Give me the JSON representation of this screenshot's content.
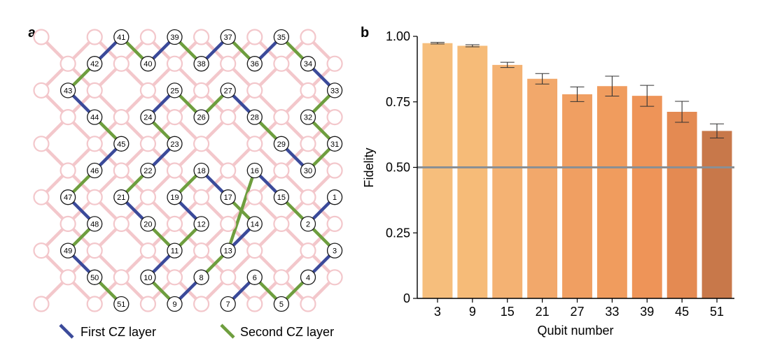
{
  "panel_a": {
    "letter": "a",
    "colors": {
      "first": "#3b4a9a",
      "second": "#6e9e3e",
      "unused": "#f3c7cb"
    },
    "grid": {
      "rows": 11,
      "cols": 11
    },
    "qubits": [
      {
        "label": "41",
        "r": 0,
        "c": 3
      },
      {
        "label": "39",
        "r": 0,
        "c": 5
      },
      {
        "label": "37",
        "r": 0,
        "c": 7
      },
      {
        "label": "35",
        "r": 0,
        "c": 9
      },
      {
        "label": "42",
        "r": 1,
        "c": 2
      },
      {
        "label": "40",
        "r": 1,
        "c": 4
      },
      {
        "label": "38",
        "r": 1,
        "c": 6
      },
      {
        "label": "36",
        "r": 1,
        "c": 8
      },
      {
        "label": "34",
        "r": 1,
        "c": 10
      },
      {
        "label": "43",
        "r": 2,
        "c": 1
      },
      {
        "label": "25",
        "r": 2,
        "c": 5
      },
      {
        "label": "27",
        "r": 2,
        "c": 7
      },
      {
        "label": "33",
        "r": 2,
        "c": 11
      },
      {
        "label": "44",
        "r": 3,
        "c": 2
      },
      {
        "label": "24",
        "r": 3,
        "c": 4
      },
      {
        "label": "26",
        "r": 3,
        "c": 6
      },
      {
        "label": "28",
        "r": 3,
        "c": 8
      },
      {
        "label": "32",
        "r": 3,
        "c": 10
      },
      {
        "label": "45",
        "r": 4,
        "c": 3
      },
      {
        "label": "23",
        "r": 4,
        "c": 5
      },
      {
        "label": "29",
        "r": 4,
        "c": 9
      },
      {
        "label": "31",
        "r": 4,
        "c": 11
      },
      {
        "label": "46",
        "r": 5,
        "c": 2
      },
      {
        "label": "22",
        "r": 5,
        "c": 4
      },
      {
        "label": "18",
        "r": 5,
        "c": 6
      },
      {
        "label": "16",
        "r": 5,
        "c": 8
      },
      {
        "label": "30",
        "r": 5,
        "c": 10
      },
      {
        "label": "47",
        "r": 6,
        "c": 1
      },
      {
        "label": "21",
        "r": 6,
        "c": 3
      },
      {
        "label": "19",
        "r": 6,
        "c": 5
      },
      {
        "label": "17",
        "r": 6,
        "c": 7
      },
      {
        "label": "15",
        "r": 6,
        "c": 9
      },
      {
        "label": "1",
        "r": 6,
        "c": 11
      },
      {
        "label": "48",
        "r": 7,
        "c": 2
      },
      {
        "label": "20",
        "r": 7,
        "c": 4
      },
      {
        "label": "12",
        "r": 7,
        "c": 6
      },
      {
        "label": "14",
        "r": 7,
        "c": 8
      },
      {
        "label": "2",
        "r": 7,
        "c": 10
      },
      {
        "label": "49",
        "r": 8,
        "c": 1
      },
      {
        "label": "11",
        "r": 8,
        "c": 5
      },
      {
        "label": "13",
        "r": 8,
        "c": 7
      },
      {
        "label": "3",
        "r": 8,
        "c": 11
      },
      {
        "label": "50",
        "r": 9,
        "c": 2
      },
      {
        "label": "10",
        "r": 9,
        "c": 4
      },
      {
        "label": "8",
        "r": 9,
        "c": 6
      },
      {
        "label": "6",
        "r": 9,
        "c": 8
      },
      {
        "label": "4",
        "r": 9,
        "c": 10
      },
      {
        "label": "51",
        "r": 10,
        "c": 3
      },
      {
        "label": "9",
        "r": 10,
        "c": 5
      },
      {
        "label": "7",
        "r": 10,
        "c": 7
      },
      {
        "label": "5",
        "r": 10,
        "c": 9
      }
    ],
    "first_layer": [
      [
        "41",
        "42"
      ],
      [
        "39",
        "40"
      ],
      [
        "37",
        "38"
      ],
      [
        "35",
        "36"
      ],
      [
        "34",
        "33"
      ],
      [
        "43",
        "44"
      ],
      [
        "25",
        "24"
      ],
      [
        "27",
        "28"
      ],
      [
        "45",
        "46"
      ],
      [
        "23",
        "22"
      ],
      [
        "29",
        "30"
      ],
      [
        "18",
        "17"
      ],
      [
        "16",
        "15"
      ],
      [
        "47",
        "48"
      ],
      [
        "21",
        "20"
      ],
      [
        "19",
        "12"
      ],
      [
        "14",
        "13"
      ],
      [
        "1",
        "2"
      ],
      [
        "49",
        "50"
      ],
      [
        "11",
        "10"
      ],
      [
        "3",
        "4"
      ],
      [
        "8",
        "9"
      ],
      [
        "6",
        "7"
      ]
    ],
    "second_layer": [
      [
        "41",
        "40"
      ],
      [
        "39",
        "38"
      ],
      [
        "37",
        "36"
      ],
      [
        "35",
        "34"
      ],
      [
        "42",
        "43"
      ],
      [
        "44",
        "45"
      ],
      [
        "24",
        "23"
      ],
      [
        "25",
        "26"
      ],
      [
        "27",
        "26"
      ],
      [
        "28",
        "29"
      ],
      [
        "33",
        "32"
      ],
      [
        "32",
        "31"
      ],
      [
        "31",
        "30"
      ],
      [
        "46",
        "47"
      ],
      [
        "22",
        "21"
      ],
      [
        "19",
        "18"
      ],
      [
        "17",
        "14"
      ],
      [
        "16",
        "13"
      ],
      [
        "48",
        "49"
      ],
      [
        "20",
        "11"
      ],
      [
        "15",
        "2"
      ],
      [
        "12",
        "11"
      ],
      [
        "3",
        "2"
      ],
      [
        "50",
        "51"
      ],
      [
        "10",
        "9"
      ],
      [
        "8",
        "13"
      ],
      [
        "6",
        "5"
      ],
      [
        "4",
        "5"
      ]
    ],
    "legend": {
      "first": "First CZ layer",
      "second": "Second CZ layer"
    }
  },
  "chart_data": {
    "panel_letter": "b",
    "type": "bar",
    "categories": [
      "3",
      "9",
      "15",
      "21",
      "27",
      "33",
      "39",
      "45",
      "51"
    ],
    "values": [
      0.974,
      0.964,
      0.891,
      0.838,
      0.779,
      0.81,
      0.773,
      0.712,
      0.639
    ],
    "errors": [
      0.003,
      0.004,
      0.01,
      0.02,
      0.028,
      0.038,
      0.04,
      0.04,
      0.027
    ],
    "bar_colors": [
      "#f6be7c",
      "#f6bb78",
      "#f4b273",
      "#f2a86b",
      "#f09f62",
      "#f09c5e",
      "#ee9458",
      "#e48a52",
      "#c8784a"
    ],
    "threshold": 0.5,
    "threshold_color": "#8a8f94",
    "ylim": [
      0,
      1
    ],
    "yticks": [
      0,
      0.25,
      0.5,
      0.75,
      1.0
    ],
    "ytick_labels": [
      "0",
      "0.25",
      "0.50",
      "0.75",
      "1.00"
    ],
    "xlabel": "Qubit number",
    "ylabel": "Fidelity",
    "grid": false
  }
}
